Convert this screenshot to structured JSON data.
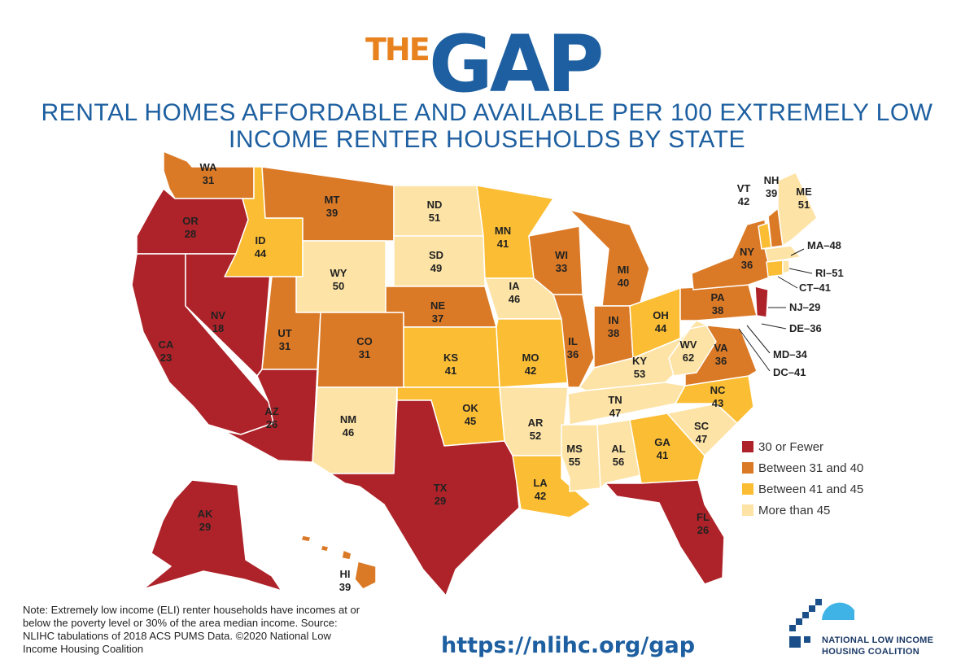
{
  "header": {
    "logo_the": "THE",
    "logo_gap": "GAP",
    "subtitle_line1": "RENTAL HOMES AFFORDABLE AND AVAILABLE PER 100 EXTREMELY LOW",
    "subtitle_line2": "INCOME RENTER HOUSEHOLDS BY STATE"
  },
  "colors": {
    "cat1": "#ad2329",
    "cat2": "#db7a26",
    "cat3": "#fbbd33",
    "cat4": "#fde3a6",
    "accent_blue": "#1d5fa0",
    "logo_orange": "#e8821f"
  },
  "legend": [
    {
      "label": "30 or Fewer",
      "color": "#ad2329"
    },
    {
      "label": "Between 31 and 40",
      "color": "#db7a26"
    },
    {
      "label": "Between 41 and 45",
      "color": "#fbbd33"
    },
    {
      "label": "More than 45",
      "color": "#fde3a6"
    }
  ],
  "states": [
    {
      "abbr": "WA",
      "value": "31"
    },
    {
      "abbr": "OR",
      "value": "28"
    },
    {
      "abbr": "CA",
      "value": "23"
    },
    {
      "abbr": "NV",
      "value": "18"
    },
    {
      "abbr": "ID",
      "value": "44"
    },
    {
      "abbr": "MT",
      "value": "39"
    },
    {
      "abbr": "WY",
      "value": "50"
    },
    {
      "abbr": "UT",
      "value": "31"
    },
    {
      "abbr": "AZ",
      "value": "26"
    },
    {
      "abbr": "CO",
      "value": "31"
    },
    {
      "abbr": "NM",
      "value": "46"
    },
    {
      "abbr": "ND",
      "value": "51"
    },
    {
      "abbr": "SD",
      "value": "49"
    },
    {
      "abbr": "NE",
      "value": "37"
    },
    {
      "abbr": "KS",
      "value": "41"
    },
    {
      "abbr": "OK",
      "value": "45"
    },
    {
      "abbr": "TX",
      "value": "29"
    },
    {
      "abbr": "MN",
      "value": "41"
    },
    {
      "abbr": "IA",
      "value": "46"
    },
    {
      "abbr": "MO",
      "value": "42"
    },
    {
      "abbr": "AR",
      "value": "52"
    },
    {
      "abbr": "LA",
      "value": "42"
    },
    {
      "abbr": "WI",
      "value": "33"
    },
    {
      "abbr": "IL",
      "value": "36"
    },
    {
      "abbr": "MI",
      "value": "40"
    },
    {
      "abbr": "IN",
      "value": "38"
    },
    {
      "abbr": "OH",
      "value": "44"
    },
    {
      "abbr": "KY",
      "value": "53"
    },
    {
      "abbr": "TN",
      "value": "47"
    },
    {
      "abbr": "MS",
      "value": "55"
    },
    {
      "abbr": "AL",
      "value": "56"
    },
    {
      "abbr": "GA",
      "value": "41"
    },
    {
      "abbr": "FL",
      "value": "26"
    },
    {
      "abbr": "SC",
      "value": "47"
    },
    {
      "abbr": "NC",
      "value": "43"
    },
    {
      "abbr": "VA",
      "value": "36"
    },
    {
      "abbr": "WV",
      "value": "62"
    },
    {
      "abbr": "PA",
      "value": "38"
    },
    {
      "abbr": "NY",
      "value": "36"
    },
    {
      "abbr": "VT",
      "value": "42"
    },
    {
      "abbr": "NH",
      "value": "39"
    },
    {
      "abbr": "ME",
      "value": "51"
    },
    {
      "abbr": "AK",
      "value": "29"
    },
    {
      "abbr": "HI",
      "value": "39"
    }
  ],
  "callouts": [
    {
      "text": "MA–48"
    },
    {
      "text": "RI–51"
    },
    {
      "text": "CT–41"
    },
    {
      "text": "NJ–29"
    },
    {
      "text": "DE–36"
    },
    {
      "text": "MD–34"
    },
    {
      "text": "DC–41"
    }
  ],
  "note": "Note: Extremely low income (ELI) renter households have incomes at or below the poverty level or 30% of the area median income. Source: NLIHC tabulations of 2018 ACS PUMS Data. ©2020 National Low Income Housing Coalition",
  "url": "https://nlihc.org/gap",
  "org": {
    "line1": "NATIONAL LOW INCOME",
    "line2": "HOUSING COALITION"
  }
}
